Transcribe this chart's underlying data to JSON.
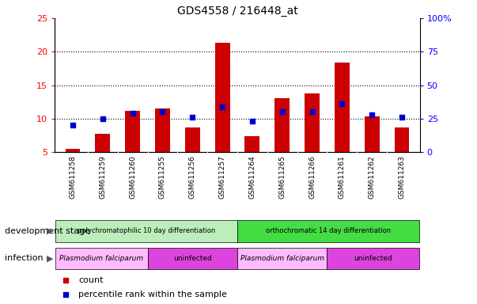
{
  "title": "GDS4558 / 216448_at",
  "samples": [
    "GSM611258",
    "GSM611259",
    "GSM611260",
    "GSM611255",
    "GSM611256",
    "GSM611257",
    "GSM611264",
    "GSM611265",
    "GSM611266",
    "GSM611261",
    "GSM611262",
    "GSM611263"
  ],
  "counts": [
    5.5,
    7.7,
    11.2,
    11.5,
    8.7,
    21.3,
    7.4,
    13.0,
    13.8,
    18.4,
    10.3,
    8.7
  ],
  "percentile_ranks": [
    20,
    25,
    29,
    30,
    26,
    34,
    23,
    30,
    30,
    36,
    28,
    26
  ],
  "ylim_left": [
    5,
    25
  ],
  "ylim_right": [
    0,
    100
  ],
  "yticks_left": [
    5,
    10,
    15,
    20,
    25
  ],
  "yticks_right": [
    0,
    25,
    50,
    75,
    100
  ],
  "ytick_labels_left": [
    "5",
    "10",
    "15",
    "20",
    "25"
  ],
  "ytick_labels_right": [
    "0",
    "25",
    "50",
    "75",
    "100%"
  ],
  "bar_color": "#cc0000",
  "dot_color": "#0000cc",
  "bar_width": 0.5,
  "plot_bg_color": "#ffffff",
  "xtick_bg_color": "#cccccc",
  "dev_stage_groups": [
    {
      "label": "polychromatophilic 10 day differentiation",
      "start": 0,
      "end": 5,
      "color": "#bbeebb"
    },
    {
      "label": "orthochromatic 14 day differentiation",
      "start": 6,
      "end": 11,
      "color": "#44dd44"
    }
  ],
  "infection_groups": [
    {
      "label": "Plasmodium falciparum",
      "start": 0,
      "end": 2,
      "color": "#ffbbff"
    },
    {
      "label": "uninfected",
      "start": 3,
      "end": 5,
      "color": "#dd44dd"
    },
    {
      "label": "Plasmodium falciparum",
      "start": 6,
      "end": 8,
      "color": "#ffbbff"
    },
    {
      "label": "uninfected",
      "start": 9,
      "end": 11,
      "color": "#dd44dd"
    }
  ],
  "legend_count_label": "count",
  "legend_pct_label": "percentile rank within the sample",
  "dev_stage_label": "development stage",
  "infection_label": "infection"
}
